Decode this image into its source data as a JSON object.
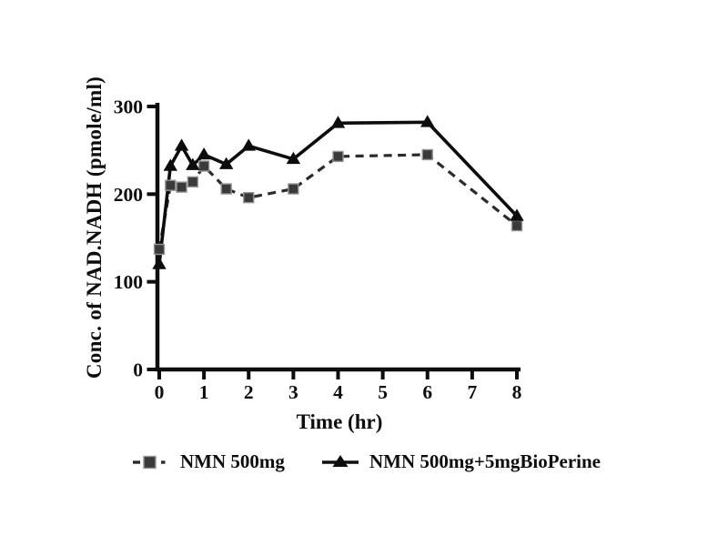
{
  "chart_data": {
    "type": "line",
    "title": "",
    "xlabel": "Time (hr)",
    "ylabel": "Conc. of NAD.NADH  (pmole/ml)",
    "xlim": [
      0,
      8
    ],
    "ylim": [
      0,
      300
    ],
    "x_ticks": [
      0,
      1,
      2,
      3,
      4,
      5,
      6,
      7,
      8
    ],
    "y_ticks": [
      0,
      100,
      200,
      300
    ],
    "grid": false,
    "legend_position": "bottom",
    "x": [
      0,
      0.25,
      0.5,
      0.75,
      1,
      1.5,
      2,
      3,
      4,
      6,
      8
    ],
    "series": [
      {
        "name": "NMN 500mg",
        "marker": "square",
        "line_style": "dashed",
        "color": "#3a3a3a",
        "line_color": "#2b2b2b",
        "marker_edge": "#969696",
        "values": [
          137,
          210,
          208,
          214,
          232,
          206,
          196,
          206,
          243,
          245,
          164
        ]
      },
      {
        "name": "NMN 500mg+5mgBioPerine",
        "marker": "triangle",
        "line_style": "solid",
        "color": "#0d0d0d",
        "line_color": "#0d0d0d",
        "marker_edge": "#0d0d0d",
        "values": [
          120,
          232,
          255,
          233,
          245,
          234,
          255,
          240,
          281,
          282,
          175
        ]
      }
    ],
    "axis_color": "#0d0d0d"
  }
}
